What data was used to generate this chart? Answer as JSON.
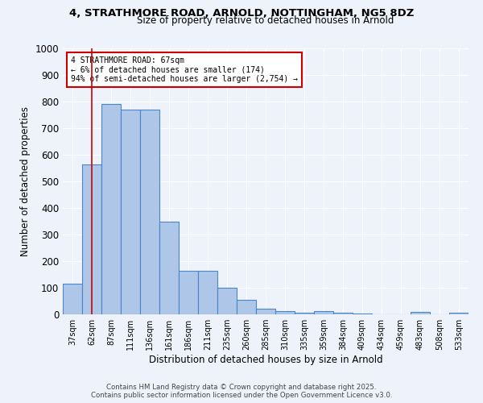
{
  "title_line1": "4, STRATHMORE ROAD, ARNOLD, NOTTINGHAM, NG5 8DZ",
  "title_line2": "Size of property relative to detached houses in Arnold",
  "xlabel": "Distribution of detached houses by size in Arnold",
  "ylabel": "Number of detached properties",
  "categories": [
    "37sqm",
    "62sqm",
    "87sqm",
    "111sqm",
    "136sqm",
    "161sqm",
    "186sqm",
    "211sqm",
    "235sqm",
    "260sqm",
    "285sqm",
    "310sqm",
    "335sqm",
    "359sqm",
    "384sqm",
    "409sqm",
    "434sqm",
    "459sqm",
    "483sqm",
    "508sqm",
    "533sqm"
  ],
  "values": [
    115,
    565,
    790,
    770,
    770,
    350,
    165,
    165,
    100,
    55,
    20,
    12,
    5,
    12,
    5,
    2,
    0,
    0,
    10,
    0,
    5
  ],
  "bar_color": "#aec6e8",
  "bar_edge_color": "#4a86c8",
  "vline_x": 1,
  "vline_color": "#cc0000",
  "annotation_text": "4 STRATHMORE ROAD: 67sqm\n← 6% of detached houses are smaller (174)\n94% of semi-detached houses are larger (2,754) →",
  "annotation_box_color": "#ffffff",
  "annotation_box_edge_color": "#cc0000",
  "ylim": [
    0,
    1000
  ],
  "yticks": [
    0,
    100,
    200,
    300,
    400,
    500,
    600,
    700,
    800,
    900,
    1000
  ],
  "bg_color": "#eef2fa",
  "grid_color": "#ffffff",
  "footer_line1": "Contains HM Land Registry data © Crown copyright and database right 2025.",
  "footer_line2": "Contains public sector information licensed under the Open Government Licence v3.0."
}
